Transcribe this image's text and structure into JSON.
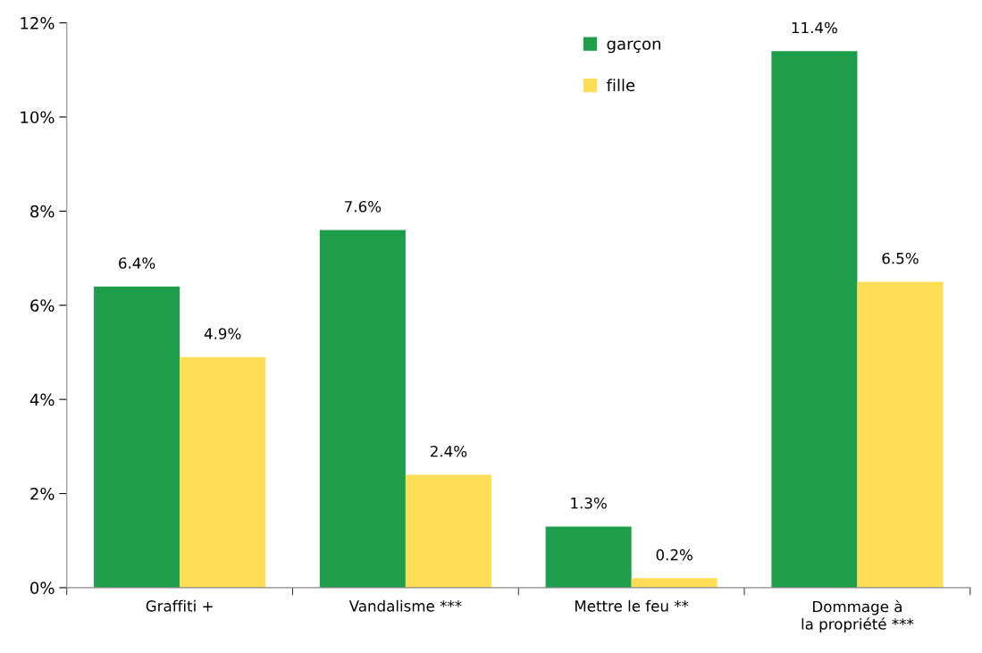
{
  "chart_data": {
    "type": "bar",
    "categories": [
      "Graffiti +",
      "Vandalisme ***",
      "Mettre le feu **",
      "Dommage à\nla propriété ***"
    ],
    "series": [
      {
        "name": "garçon",
        "color": "#1e9e4a",
        "values": [
          6.4,
          7.6,
          1.3,
          11.4
        ],
        "value_labels": [
          "6.4%",
          "7.6%",
          "1.3%",
          "11.4%"
        ]
      },
      {
        "name": "fille",
        "color": "#ffdd55",
        "values": [
          4.9,
          2.4,
          0.2,
          6.5
        ],
        "value_labels": [
          "4.9%",
          "2.4%",
          "0.2%",
          "6.5%"
        ]
      }
    ],
    "ylim": [
      0,
      12
    ],
    "yticks": [
      {
        "value": 0,
        "label": "0%"
      },
      {
        "value": 2,
        "label": "2%"
      },
      {
        "value": 4,
        "label": "4%"
      },
      {
        "value": 6,
        "label": "6%"
      },
      {
        "value": 8,
        "label": "8%"
      },
      {
        "value": 10,
        "label": "10%"
      },
      {
        "value": 12,
        "label": "12%"
      }
    ],
    "grid": false,
    "legend": "top"
  }
}
